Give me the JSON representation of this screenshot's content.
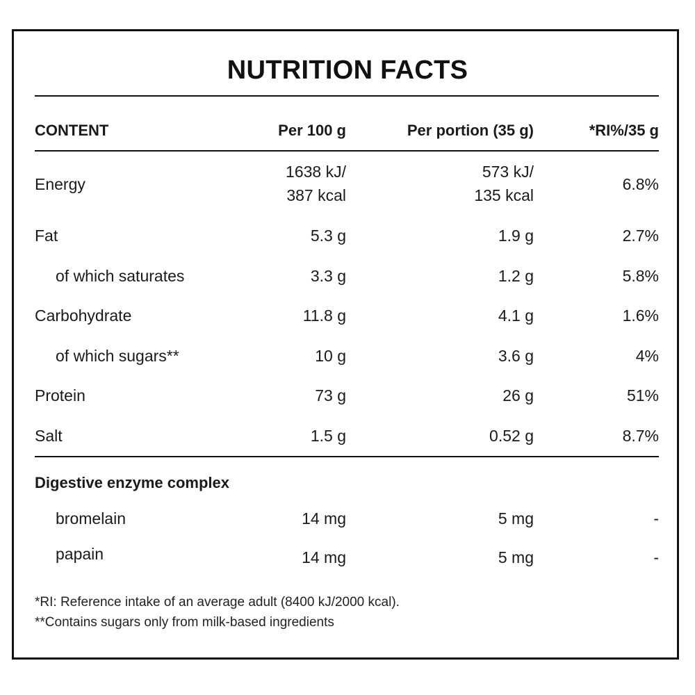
{
  "title": "NUTRITION FACTS",
  "headers": {
    "content": "CONTENT",
    "per100": "Per 100 g",
    "portion": "Per portion (35 g)",
    "ri": "*RI%/35 g"
  },
  "energy": {
    "label": "Energy",
    "per100_line1": "1638 kJ/",
    "per100_line2": "387 kcal",
    "portion_line1": "573 kJ/",
    "portion_line2": "135 kcal",
    "ri": "6.8%"
  },
  "rows": [
    {
      "label": "Fat",
      "per100": "5.3 g",
      "portion": "1.9 g",
      "ri": "2.7%"
    },
    {
      "label": "of which saturates",
      "per100": "3.3 g",
      "portion": "1.2 g",
      "ri": "5.8%"
    },
    {
      "label": "Carbohydrate",
      "per100": "11.8 g",
      "portion": "4.1 g",
      "ri": "1.6%"
    },
    {
      "label": "of which sugars**",
      "per100": "10 g",
      "portion": "3.6 g",
      "ri": "4%"
    },
    {
      "label": "Protein",
      "per100": "73 g",
      "portion": "26 g",
      "ri": "51%"
    },
    {
      "label": "Salt",
      "per100": "1.5 g",
      "portion": "0.52 g",
      "ri": "8.7%"
    }
  ],
  "enzyme_section": {
    "title": "Digestive enzyme complex",
    "rows": [
      {
        "label": "bromelain",
        "per100": "14 mg",
        "portion": "5 mg",
        "ri": "-"
      },
      {
        "label": "papain",
        "per100": "14 mg",
        "portion": "5 mg",
        "ri": "-"
      }
    ]
  },
  "footnotes": [
    "*RI: Reference intake of an average adult (8400 kJ/2000 kcal).",
    "**Contains sugars only from milk-based ingredients"
  ]
}
